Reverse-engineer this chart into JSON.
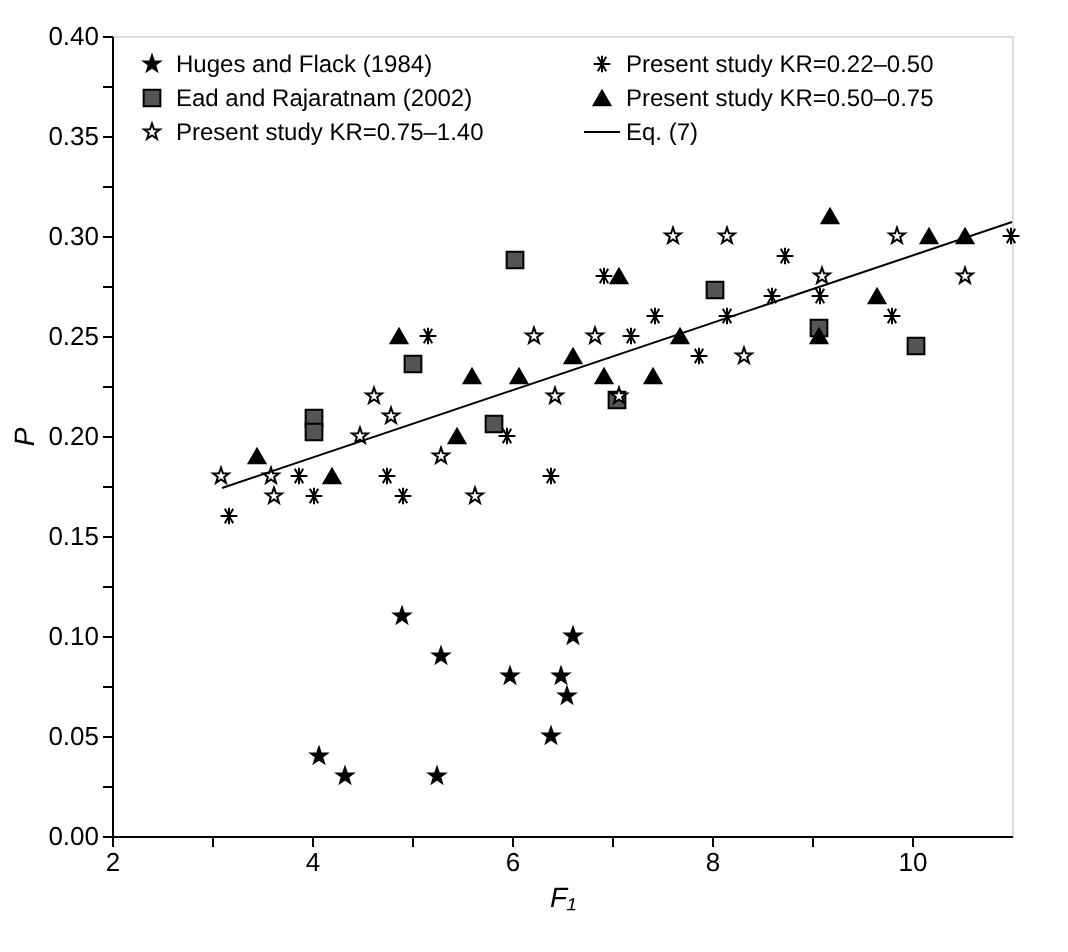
{
  "chart_data": {
    "type": "scatter",
    "xlabel": "F₁",
    "ylabel": "P",
    "xlim": [
      2,
      11
    ],
    "xticks": [
      2,
      {
        "value": 3,
        "label": null
      },
      4,
      {
        "value": 5,
        "label": null
      },
      6,
      {
        "value": 7,
        "label": null
      },
      8,
      {
        "value": 9,
        "label": null
      },
      10
    ],
    "ylim": [
      0,
      0.4
    ],
    "yticks": [
      {
        "value": 0,
        "label": "0.00"
      },
      {
        "value": 0.025,
        "label": null
      },
      0.05,
      {
        "value": 0.075,
        "label": null
      },
      {
        "value": 0.1,
        "label": "0.10"
      },
      {
        "value": 0.125,
        "label": null
      },
      0.15,
      {
        "value": 0.175,
        "label": null
      },
      {
        "value": 0.2,
        "label": "0.20"
      },
      {
        "value": 0.225,
        "label": null
      },
      0.25,
      {
        "value": 0.275,
        "label": null
      },
      {
        "value": 0.3,
        "label": "0.30"
      },
      {
        "value": 0.325,
        "label": null
      },
      0.35,
      {
        "value": 0.375,
        "label": null
      },
      {
        "value": 0.4,
        "label": "0.40"
      }
    ],
    "grid": false,
    "legend": "top left",
    "series": [
      {
        "name": "Huges and Flack (1984)",
        "color": "#000000",
        "marker": "star",
        "x": [
          4.07,
          4.33,
          4.9,
          5.29,
          5.25,
          5.98,
          6.61,
          6.49,
          6.55,
          6.39
        ],
        "values": [
          0.04,
          0.03,
          0.11,
          0.09,
          0.03,
          0.08,
          0.1,
          0.08,
          0.07,
          0.05
        ]
      },
      {
        "name": "Present study KR=0.22–0.50",
        "color": "#000000",
        "marker": "cross",
        "x": [
          3.17,
          3.87,
          4.02,
          4.75,
          4.91,
          5.16,
          5.95,
          6.39,
          6.92,
          7.19,
          7.43,
          7.87,
          8.15,
          8.6,
          8.73,
          9.08,
          9.8,
          10.99
        ],
        "values": [
          0.16,
          0.18,
          0.17,
          0.18,
          0.17,
          0.25,
          0.2,
          0.18,
          0.28,
          0.25,
          0.26,
          0.24,
          0.26,
          0.27,
          0.29,
          0.27,
          0.26,
          0.3
        ]
      },
      {
        "name": "Ead and Rajaratnam (2002)",
        "color": "#555555",
        "marker": "square",
        "x": [
          4.02,
          4.02,
          5.01,
          5.82,
          6.03,
          7.05,
          8.03,
          9.07,
          10.04
        ],
        "values": [
          0.209,
          0.202,
          0.236,
          0.206,
          0.288,
          0.218,
          0.273,
          0.254,
          0.245
        ]
      },
      {
        "name": "Present study KR=0.50–0.75",
        "color": "#000000",
        "marker": "triangle",
        "x": [
          3.45,
          4.2,
          4.87,
          5.45,
          5.6,
          6.07,
          6.61,
          6.92,
          7.07,
          7.41,
          7.68,
          9.07,
          9.18,
          9.65,
          10.17,
          10.53
        ],
        "values": [
          0.19,
          0.18,
          0.25,
          0.2,
          0.23,
          0.23,
          0.24,
          0.23,
          0.28,
          0.23,
          0.25,
          0.25,
          0.31,
          0.27,
          0.3,
          0.3
        ]
      },
      {
        "name": "Present study KR=0.75–1.40",
        "color": "#ffffff",
        "marker": "star",
        "x": [
          3.09,
          3.59,
          3.62,
          4.48,
          4.62,
          4.79,
          5.29,
          5.63,
          6.22,
          6.43,
          6.83,
          7.07,
          7.61,
          8.15,
          8.32,
          9.1,
          9.85,
          10.53
        ],
        "values": [
          0.18,
          0.18,
          0.17,
          0.2,
          0.22,
          0.21,
          0.19,
          0.17,
          0.25,
          0.22,
          0.25,
          0.22,
          0.3,
          0.3,
          0.24,
          0.28,
          0.3,
          0.28
        ]
      },
      {
        "name": "Eq. (7)",
        "type": "line",
        "color": "#000000",
        "marker": "none",
        "line_style": "solid",
        "x": [
          3.1,
          11
        ],
        "values": [
          0.174,
          0.307
        ]
      }
    ]
  }
}
